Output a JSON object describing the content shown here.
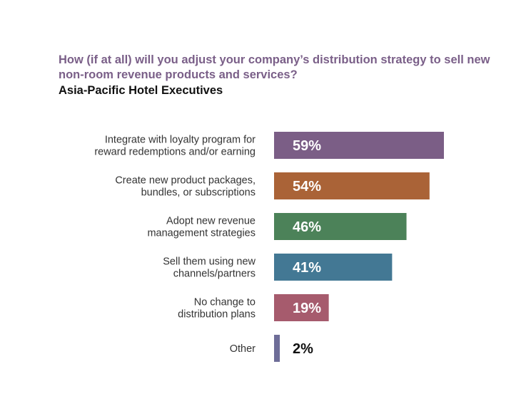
{
  "chart_data": {
    "type": "bar",
    "orientation": "horizontal",
    "title": "How (if at all) will you adjust your company’s distribution strategy to sell new non-room revenue products and services?",
    "subtitle": "Asia-Pacific Hotel Executives",
    "categories": [
      [
        "Integrate with loyalty program for",
        "reward redemptions and/or earning"
      ],
      [
        "Create new product packages,",
        "bundles, or subscriptions"
      ],
      [
        "Adopt new revenue",
        "management strategies"
      ],
      [
        "Sell them using new",
        "channels/partners"
      ],
      [
        "No change to",
        "distribution plans"
      ],
      [
        "Other"
      ]
    ],
    "values": [
      59,
      54,
      46,
      41,
      19,
      2
    ],
    "value_labels": [
      "59%",
      "54%",
      "46%",
      "41%",
      "19%",
      "2%"
    ],
    "colors": [
      "#7b5e86",
      "#aa6337",
      "#4c8259",
      "#437894",
      "#a65b6d",
      "#6e6d98"
    ],
    "label_colors": [
      "#ffffff",
      "#ffffff",
      "#ffffff",
      "#ffffff",
      "#ffffff",
      "#111111"
    ],
    "xlim": [
      0,
      100
    ],
    "grid": false,
    "legend": "none"
  }
}
